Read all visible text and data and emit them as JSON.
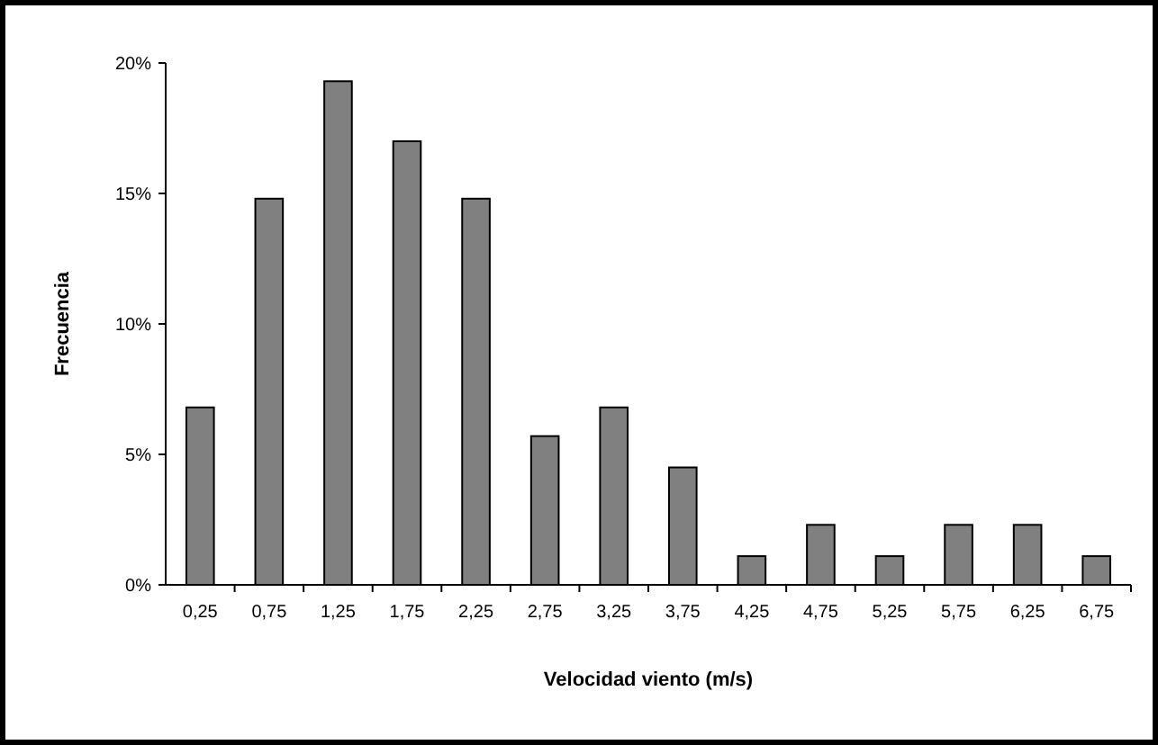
{
  "chart_data": {
    "type": "bar",
    "xlabel": "Velocidad viento (m/s)",
    "ylabel": "Frecuencia",
    "categories": [
      "0,25",
      "0,75",
      "1,25",
      "1,75",
      "2,25",
      "2,75",
      "3,25",
      "3,75",
      "4,25",
      "4,75",
      "5,25",
      "5,75",
      "6,25",
      "6,75"
    ],
    "values": [
      6.8,
      14.8,
      19.3,
      17.0,
      14.8,
      5.7,
      6.8,
      4.5,
      1.1,
      2.3,
      1.1,
      2.3,
      2.3,
      1.1
    ],
    "color": "#808080",
    "ylim": [
      0,
      20
    ],
    "yticks": [
      {
        "value": 0,
        "label": "0%"
      },
      {
        "value": 5,
        "label": "5%"
      },
      {
        "value": 10,
        "label": "10%"
      },
      {
        "value": 15,
        "label": "15%"
      },
      {
        "value": 20,
        "label": "20%"
      }
    ],
    "grid": false
  }
}
